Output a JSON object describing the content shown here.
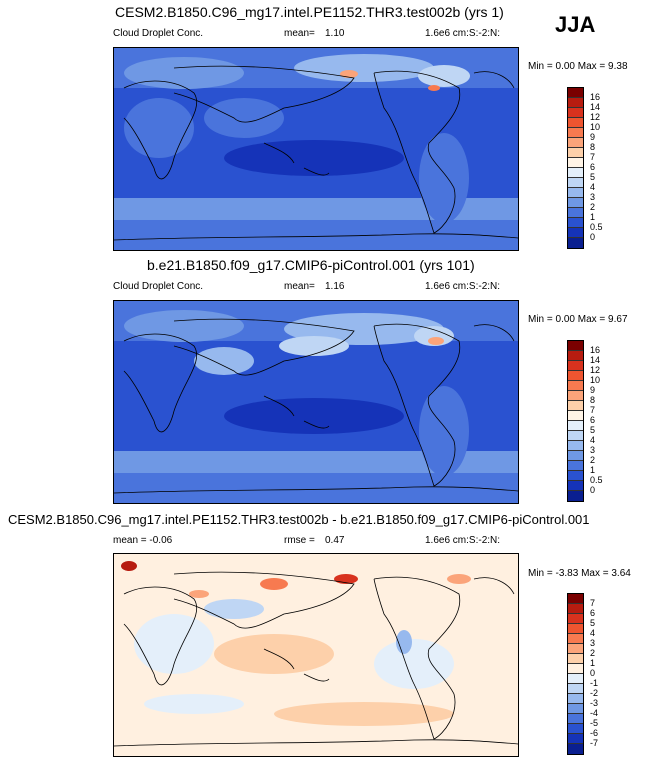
{
  "season": "JJA",
  "panels": [
    {
      "title": "CESM2.B1850.C96_mg17.intel.PE1152.THR3.test002b (yrs 1)",
      "left_label": "Cloud Droplet Conc.",
      "mid_label": "mean=",
      "mid_value": "1.10",
      "units": "1.6e6 cm:S:-2:N:",
      "minmax": "Min =  0.00 Max =  9.38",
      "colorbar_ticks": [
        "16",
        "14",
        "12",
        "10",
        "9",
        "8",
        "7",
        "6",
        "5",
        "4",
        "3",
        "2",
        "1",
        "0.5",
        "0"
      ],
      "colorbar_colors": [
        "#7a0000",
        "#b71c10",
        "#d8321e",
        "#ee5530",
        "#f77a50",
        "#fba47a",
        "#fdd0aa",
        "#fff4e6",
        "#e4effa",
        "#bfd6f4",
        "#97b9ee",
        "#6f98e4",
        "#4a74dc",
        "#2a52d0",
        "#1533b8",
        "#0a1f90"
      ]
    },
    {
      "title": "b.e21.B1850.f09_g17.CMIP6-piControl.001 (yrs 101)",
      "left_label": "Cloud Droplet Conc.",
      "mid_label": "mean=",
      "mid_value": "1.16",
      "units": "1.6e6 cm:S:-2:N:",
      "minmax": "Min =  0.00 Max =  9.67",
      "colorbar_ticks": [
        "16",
        "14",
        "12",
        "10",
        "9",
        "8",
        "7",
        "6",
        "5",
        "4",
        "3",
        "2",
        "1",
        "0.5",
        "0"
      ],
      "colorbar_colors": [
        "#7a0000",
        "#b71c10",
        "#d8321e",
        "#ee5530",
        "#f77a50",
        "#fba47a",
        "#fdd0aa",
        "#fff4e6",
        "#e4effa",
        "#bfd6f4",
        "#97b9ee",
        "#6f98e4",
        "#4a74dc",
        "#2a52d0",
        "#1533b8",
        "#0a1f90"
      ]
    },
    {
      "title": "CESM2.B1850.C96_mg17.intel.PE1152.THR3.test002b - b.e21.B1850.f09_g17.CMIP6-piControl.001",
      "left_label": "mean =  -0.06",
      "mid_label": "rmse =",
      "mid_value": "0.47",
      "units": "1.6e6 cm:S:-2:N:",
      "minmax": "Min = -3.83 Max =  3.64",
      "colorbar_ticks": [
        "7",
        "6",
        "5",
        "4",
        "3",
        "2",
        "1",
        "0",
        "-1",
        "-2",
        "-3",
        "-4",
        "-5",
        "-6",
        "-7"
      ],
      "colorbar_colors": [
        "#7a0000",
        "#b71c10",
        "#d8321e",
        "#ee5530",
        "#f77a50",
        "#fba47a",
        "#fdd0aa",
        "#fff0e0",
        "#e4effa",
        "#bfd6f4",
        "#97b9ee",
        "#6f98e4",
        "#4a74dc",
        "#2a52d0",
        "#1533b8",
        "#0a1f90"
      ]
    }
  ],
  "chart_data": [
    {
      "type": "heatmap",
      "title": "CESM2.B1850.C96_mg17.intel.PE1152.THR3.test002b (yrs 1)",
      "variable": "Cloud Droplet Conc.",
      "units": "1.6e6 cm:S:-2:N:",
      "mean": 1.1,
      "min": 0.0,
      "max": 9.38,
      "levels": [
        0,
        0.5,
        1,
        2,
        3,
        4,
        5,
        6,
        7,
        8,
        9,
        10,
        12,
        14,
        16
      ],
      "season": "JJA"
    },
    {
      "type": "heatmap",
      "title": "b.e21.B1850.f09_g17.CMIP6-piControl.001 (yrs 101)",
      "variable": "Cloud Droplet Conc.",
      "units": "1.6e6 cm:S:-2:N:",
      "mean": 1.16,
      "min": 0.0,
      "max": 9.67,
      "levels": [
        0,
        0.5,
        1,
        2,
        3,
        4,
        5,
        6,
        7,
        8,
        9,
        10,
        12,
        14,
        16
      ],
      "season": "JJA"
    },
    {
      "type": "heatmap",
      "title": "CESM2.B1850.C96_mg17.intel.PE1152.THR3.test002b - b.e21.B1850.f09_g17.CMIP6-piControl.001",
      "units": "1.6e6 cm:S:-2:N:",
      "mean": -0.06,
      "rmse": 0.47,
      "min": -3.83,
      "max": 3.64,
      "levels": [
        -7,
        -6,
        -5,
        -4,
        -3,
        -2,
        -1,
        0,
        1,
        2,
        3,
        4,
        5,
        6,
        7
      ],
      "season": "JJA"
    }
  ]
}
